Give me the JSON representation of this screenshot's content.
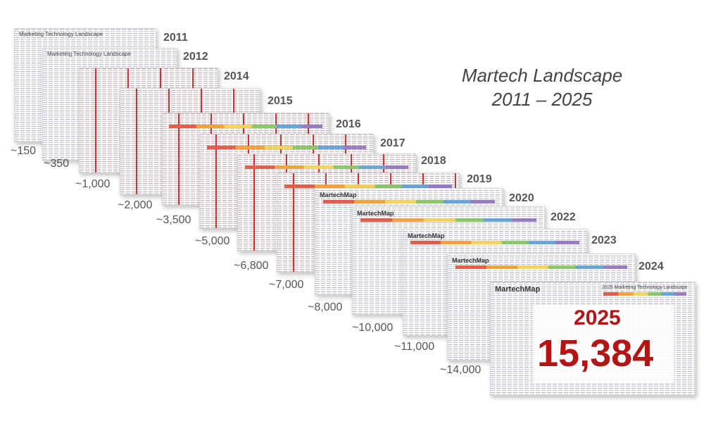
{
  "title_line1": "Martech Landscape",
  "title_line2": "2011 – 2025",
  "slides": [
    {
      "year": "2011",
      "count": "~150",
      "header": "Marketing Technology Landscape"
    },
    {
      "year": "2012",
      "count": "~350",
      "header": "Marketing Technology Landscape"
    },
    {
      "year": "2014",
      "count": "~1,000"
    },
    {
      "year": "2015",
      "count": "~2,000"
    },
    {
      "year": "2016",
      "count": "~3,500"
    },
    {
      "year": "2017",
      "count": "~5,000"
    },
    {
      "year": "2018",
      "count": "~6,800"
    },
    {
      "year": "2019",
      "count": "~7,000"
    },
    {
      "year": "2020",
      "count": "~8,000",
      "header": "MartechMap"
    },
    {
      "year": "2022",
      "count": "~10,000",
      "header": "MartechMap"
    },
    {
      "year": "2023",
      "count": "~11,000",
      "header": "MartechMap"
    },
    {
      "year": "2024",
      "count": "~14,000",
      "header": "MartechMap"
    }
  ],
  "final": {
    "header": "MartechMap",
    "subheader": "2025 Marketing Technology Landscape",
    "year": "2025",
    "count": "15,384"
  }
}
